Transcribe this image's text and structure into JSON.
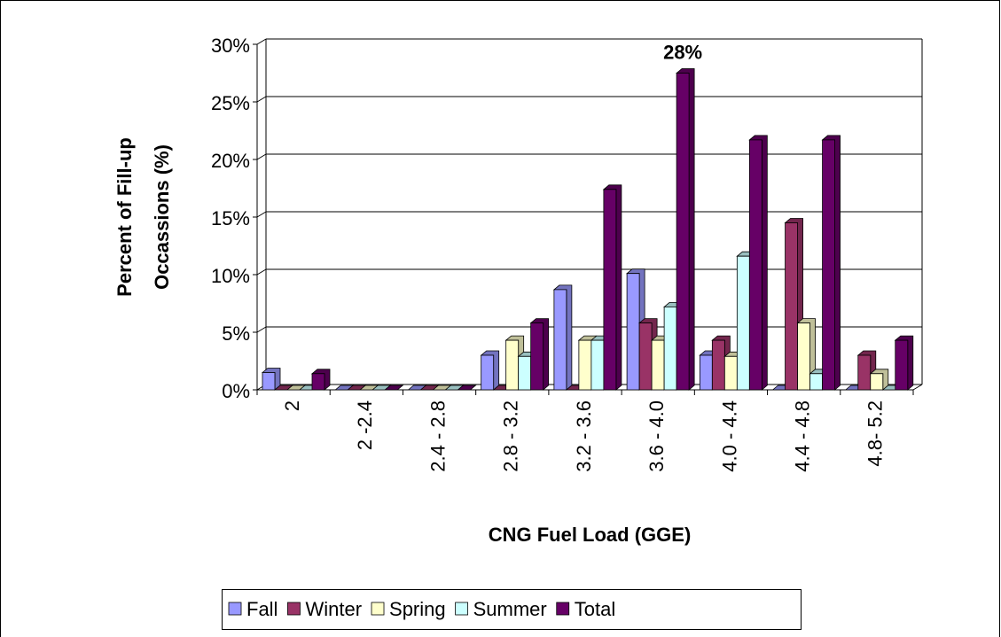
{
  "chart_data": {
    "type": "bar3d",
    "ylabel": [
      "Percent of Fill-up",
      "Occassions (%)"
    ],
    "xlabel": "CNG Fuel Load (GGE)",
    "categories": [
      "2",
      "2 -2.4",
      "2.4 - 2.8",
      "2.8 - 3.2",
      "3.2 - 3.6",
      "3.6 - 4.0",
      "4.0 - 4.4",
      "4.4 - 4.8",
      "4.8- 5.2"
    ],
    "series": [
      {
        "name": "Fall",
        "color": "#9999ff",
        "values": [
          1.5,
          0,
          0,
          3,
          8.7,
          10.1,
          3,
          0,
          0
        ]
      },
      {
        "name": "Winter",
        "color": "#993366",
        "values": [
          0,
          0,
          0,
          0,
          0,
          5.8,
          4.3,
          14.5,
          3
        ]
      },
      {
        "name": "Spring",
        "color": "#ffffcc",
        "values": [
          0,
          0,
          0,
          4.3,
          4.3,
          4.3,
          2.9,
          5.8,
          1.4
        ]
      },
      {
        "name": "Summer",
        "color": "#ccffff",
        "values": [
          0,
          0,
          0,
          2.9,
          4.3,
          7.2,
          11.6,
          1.4,
          0
        ]
      },
      {
        "name": "Total",
        "color": "#660066",
        "values": [
          1.4,
          0,
          0,
          5.8,
          17.4,
          27.5,
          21.7,
          21.7,
          4.3
        ],
        "value_labels": [
          null,
          null,
          null,
          null,
          null,
          "28%",
          null,
          null,
          null
        ]
      }
    ],
    "ylim": [
      0,
      30
    ],
    "yticks": [
      {
        "value": 0,
        "label": "0%"
      },
      {
        "value": 5,
        "label": "5%"
      },
      {
        "value": 10,
        "label": "10%"
      },
      {
        "value": 15,
        "label": "15%"
      },
      {
        "value": 20,
        "label": "20%"
      },
      {
        "value": 25,
        "label": "25%"
      },
      {
        "value": 30,
        "label": "30%"
      }
    ],
    "grid": true,
    "legend": "bottom"
  }
}
